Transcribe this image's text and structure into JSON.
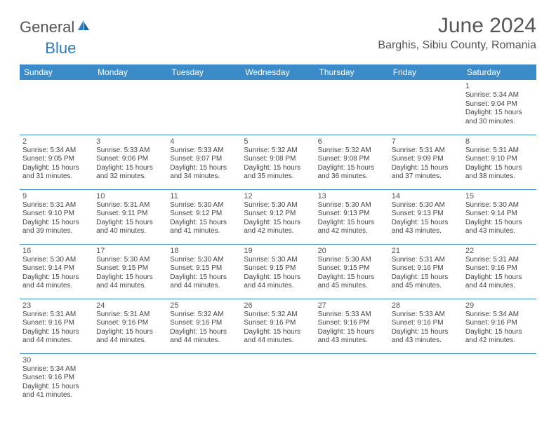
{
  "logo": {
    "general": "General",
    "blue": "Blue"
  },
  "title": "June 2024",
  "location": "Barghis, Sibiu County, Romania",
  "colors": {
    "header_bg": "#3b8bc8",
    "header_text": "#ffffff",
    "border": "#3b8bc8",
    "shaded": "#f0f0f0",
    "text": "#444444",
    "title_text": "#555555",
    "logo_blue": "#2b7bbf"
  },
  "weekdays": [
    "Sunday",
    "Monday",
    "Tuesday",
    "Wednesday",
    "Thursday",
    "Friday",
    "Saturday"
  ],
  "weeks": [
    [
      null,
      null,
      null,
      null,
      null,
      null,
      {
        "n": 1,
        "sr": "5:34 AM",
        "ss": "9:04 PM",
        "dh": 15,
        "dm": 30
      }
    ],
    [
      {
        "n": 2,
        "sr": "5:34 AM",
        "ss": "9:05 PM",
        "dh": 15,
        "dm": 31
      },
      {
        "n": 3,
        "sr": "5:33 AM",
        "ss": "9:06 PM",
        "dh": 15,
        "dm": 32
      },
      {
        "n": 4,
        "sr": "5:33 AM",
        "ss": "9:07 PM",
        "dh": 15,
        "dm": 34
      },
      {
        "n": 5,
        "sr": "5:32 AM",
        "ss": "9:08 PM",
        "dh": 15,
        "dm": 35
      },
      {
        "n": 6,
        "sr": "5:32 AM",
        "ss": "9:08 PM",
        "dh": 15,
        "dm": 36
      },
      {
        "n": 7,
        "sr": "5:31 AM",
        "ss": "9:09 PM",
        "dh": 15,
        "dm": 37
      },
      {
        "n": 8,
        "sr": "5:31 AM",
        "ss": "9:10 PM",
        "dh": 15,
        "dm": 38
      }
    ],
    [
      {
        "n": 9,
        "sr": "5:31 AM",
        "ss": "9:10 PM",
        "dh": 15,
        "dm": 39
      },
      {
        "n": 10,
        "sr": "5:31 AM",
        "ss": "9:11 PM",
        "dh": 15,
        "dm": 40
      },
      {
        "n": 11,
        "sr": "5:30 AM",
        "ss": "9:12 PM",
        "dh": 15,
        "dm": 41
      },
      {
        "n": 12,
        "sr": "5:30 AM",
        "ss": "9:12 PM",
        "dh": 15,
        "dm": 42
      },
      {
        "n": 13,
        "sr": "5:30 AM",
        "ss": "9:13 PM",
        "dh": 15,
        "dm": 42
      },
      {
        "n": 14,
        "sr": "5:30 AM",
        "ss": "9:13 PM",
        "dh": 15,
        "dm": 43
      },
      {
        "n": 15,
        "sr": "5:30 AM",
        "ss": "9:14 PM",
        "dh": 15,
        "dm": 43
      }
    ],
    [
      {
        "n": 16,
        "sr": "5:30 AM",
        "ss": "9:14 PM",
        "dh": 15,
        "dm": 44
      },
      {
        "n": 17,
        "sr": "5:30 AM",
        "ss": "9:15 PM",
        "dh": 15,
        "dm": 44
      },
      {
        "n": 18,
        "sr": "5:30 AM",
        "ss": "9:15 PM",
        "dh": 15,
        "dm": 44
      },
      {
        "n": 19,
        "sr": "5:30 AM",
        "ss": "9:15 PM",
        "dh": 15,
        "dm": 44
      },
      {
        "n": 20,
        "sr": "5:30 AM",
        "ss": "9:15 PM",
        "dh": 15,
        "dm": 45
      },
      {
        "n": 21,
        "sr": "5:31 AM",
        "ss": "9:16 PM",
        "dh": 15,
        "dm": 45
      },
      {
        "n": 22,
        "sr": "5:31 AM",
        "ss": "9:16 PM",
        "dh": 15,
        "dm": 44
      }
    ],
    [
      {
        "n": 23,
        "sr": "5:31 AM",
        "ss": "9:16 PM",
        "dh": 15,
        "dm": 44
      },
      {
        "n": 24,
        "sr": "5:31 AM",
        "ss": "9:16 PM",
        "dh": 15,
        "dm": 44
      },
      {
        "n": 25,
        "sr": "5:32 AM",
        "ss": "9:16 PM",
        "dh": 15,
        "dm": 44
      },
      {
        "n": 26,
        "sr": "5:32 AM",
        "ss": "9:16 PM",
        "dh": 15,
        "dm": 44
      },
      {
        "n": 27,
        "sr": "5:33 AM",
        "ss": "9:16 PM",
        "dh": 15,
        "dm": 43
      },
      {
        "n": 28,
        "sr": "5:33 AM",
        "ss": "9:16 PM",
        "dh": 15,
        "dm": 43
      },
      {
        "n": 29,
        "sr": "5:34 AM",
        "ss": "9:16 PM",
        "dh": 15,
        "dm": 42
      }
    ],
    [
      {
        "n": 30,
        "sr": "5:34 AM",
        "ss": "9:16 PM",
        "dh": 15,
        "dm": 41
      },
      null,
      null,
      null,
      null,
      null,
      null
    ]
  ],
  "labels": {
    "sunrise": "Sunrise:",
    "sunset": "Sunset:",
    "daylight": "Daylight:",
    "hours": "hours",
    "and": "and",
    "minutes": "minutes."
  }
}
